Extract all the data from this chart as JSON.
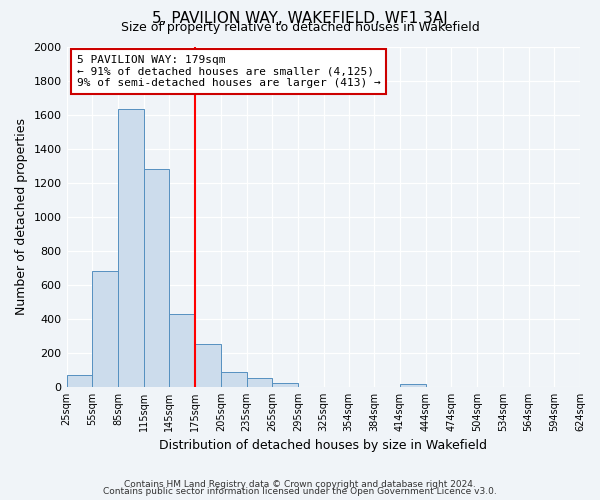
{
  "title": "5, PAVILION WAY, WAKEFIELD, WF1 3AJ",
  "subtitle": "Size of property relative to detached houses in Wakefield",
  "xlabel": "Distribution of detached houses by size in Wakefield",
  "ylabel": "Number of detached properties",
  "footnote1": "Contains HM Land Registry data © Crown copyright and database right 2024.",
  "footnote2": "Contains public sector information licensed under the Open Government Licence v3.0.",
  "annotation_line1": "5 PAVILION WAY: 179sqm",
  "annotation_line2": "← 91% of detached houses are smaller (4,125)",
  "annotation_line3": "9% of semi-detached houses are larger (413) →",
  "bin_left_edges": [
    25,
    55,
    85,
    115,
    145,
    175,
    205,
    235,
    265,
    295,
    325,
    354,
    384,
    414,
    444,
    474,
    504,
    534,
    564,
    594
  ],
  "bin_width": 30,
  "bar_heights": [
    70,
    680,
    1630,
    1280,
    430,
    250,
    90,
    55,
    25,
    0,
    0,
    0,
    0,
    15,
    0,
    0,
    0,
    0,
    0,
    0
  ],
  "bar_color": "#ccdcec",
  "bar_edge_color": "#5590c0",
  "red_line_x": 175,
  "ylim": [
    0,
    2000
  ],
  "yticks": [
    0,
    200,
    400,
    600,
    800,
    1000,
    1200,
    1400,
    1600,
    1800,
    2000
  ],
  "xtick_labels": [
    "25sqm",
    "55sqm",
    "85sqm",
    "115sqm",
    "145sqm",
    "175sqm",
    "205sqm",
    "235sqm",
    "265sqm",
    "295sqm",
    "325sqm",
    "354sqm",
    "384sqm",
    "414sqm",
    "444sqm",
    "474sqm",
    "504sqm",
    "534sqm",
    "564sqm",
    "594sqm",
    "624sqm"
  ],
  "xtick_positions": [
    25,
    55,
    85,
    115,
    145,
    175,
    205,
    235,
    265,
    295,
    325,
    354,
    384,
    414,
    444,
    474,
    504,
    534,
    564,
    594,
    624
  ],
  "background_color": "#f0f4f8",
  "plot_bg_color": "#f0f4f8",
  "grid_color": "#ffffff",
  "annotation_box_color": "#ffffff",
  "annotation_box_edge_color": "#cc0000",
  "title_fontsize": 11,
  "subtitle_fontsize": 9,
  "ylabel_fontsize": 9,
  "xlabel_fontsize": 9,
  "footnote_fontsize": 6.5
}
